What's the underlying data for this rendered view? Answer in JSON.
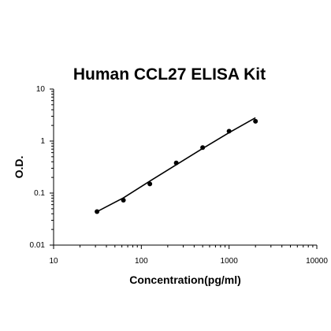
{
  "chart_data": {
    "type": "scatter",
    "title": "Human CCL27 ELISA Kit",
    "xlabel": "Concentration(pg/ml)",
    "ylabel": "O.D.",
    "x_scale": "log",
    "y_scale": "log",
    "xlim": [
      10,
      10000
    ],
    "ylim": [
      0.01,
      10
    ],
    "x_ticks": [
      "10",
      "100",
      "1000",
      "10000"
    ],
    "y_ticks": [
      "0.01",
      "0.1",
      "1",
      "10"
    ],
    "grid": false,
    "legend": "none",
    "series": [
      {
        "points": [
          {
            "x": 31.25,
            "y": 0.044
          },
          {
            "x": 62.5,
            "y": 0.073
          },
          {
            "x": 125,
            "y": 0.15
          },
          {
            "x": 250,
            "y": 0.38
          },
          {
            "x": 500,
            "y": 0.75
          },
          {
            "x": 1000,
            "y": 1.55
          },
          {
            "x": 2000,
            "y": 2.4
          }
        ]
      }
    ],
    "fit_line": [
      {
        "x": 31.25,
        "y": 0.044
      },
      {
        "x": 62.5,
        "y": 0.081
      },
      {
        "x": 125,
        "y": 0.17
      },
      {
        "x": 250,
        "y": 0.35
      },
      {
        "x": 500,
        "y": 0.72
      },
      {
        "x": 1000,
        "y": 1.45
      },
      {
        "x": 2000,
        "y": 2.8
      }
    ],
    "colors": {
      "marker": "#000000",
      "line": "#000000",
      "axis": "#000000",
      "background": "#ffffff"
    }
  }
}
